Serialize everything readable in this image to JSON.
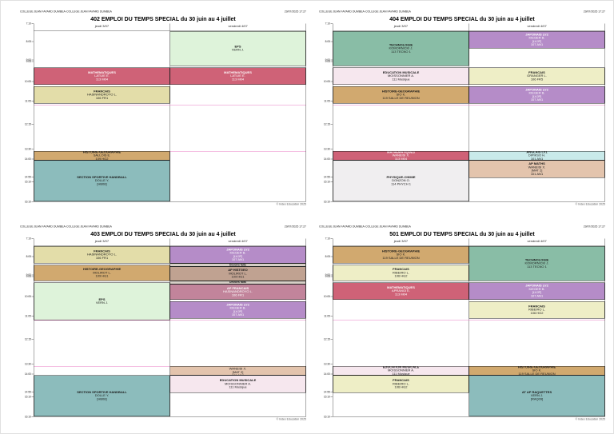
{
  "page_footer": "© Index Education 2025",
  "schedule_grid": {
    "day_start": "7:10",
    "day_end": "16:10",
    "time_ticks": [
      "7:10",
      "8:05",
      "9:00",
      "9:05",
      "10:05",
      "11:05",
      "12:15",
      "13:30",
      "14:00",
      "14:55",
      "15:10",
      "16:10"
    ],
    "break_lines": [
      "11:05",
      "13:30"
    ],
    "break_line_color": "#e87cc4",
    "grid_border_color": "#555555"
  },
  "timetables": [
    {
      "id": "402",
      "header_left": "COLLEGE JEAN FAYARD DUMBEA-COLLEGE JEAN FAYARD DUMBEA",
      "header_right": "29/07/2025 17:27",
      "title": "402 EMPLOI DU TEMPS SPECIAL du 30 juin au 4 juillet",
      "columns": [
        "jeudi 3/07",
        "vendredi 4/07"
      ],
      "events": [
        {
          "col": 0,
          "start": "9:05",
          "end": "10:00",
          "lines": [
            "MATHEMATIQUES",
            "LATUIE E.",
            "113 M04"
          ],
          "bg": "#cf6277",
          "fg": "#ffffff"
        },
        {
          "col": 0,
          "start": "10:05",
          "end": "11:00",
          "lines": [
            "FRANCAIS",
            "HASINANDROYO L.",
            "106 FR1"
          ],
          "bg": "#e3dda9"
        },
        {
          "col": 0,
          "start": "13:30",
          "end": "14:00",
          "lines": [
            "HISTOIRE-GEOGRAPHIE",
            "SALLOIS E.",
            "109 HG2"
          ],
          "bg": "#d1a96f"
        },
        {
          "col": 0,
          "start": "14:00",
          "end": "16:10",
          "lines": [
            "SECTION SPORTIVE HANDBALL",
            "DOLLE Y.",
            "[HB08]"
          ],
          "bg": "#8cbcbc"
        },
        {
          "col": 1,
          "start": "7:10",
          "end": "9:00",
          "lines": [
            "EPS",
            "VERN J."
          ],
          "bg": "#def3da"
        },
        {
          "col": 1,
          "start": "9:05",
          "end": "10:00",
          "lines": [
            "MATHEMATIQUES",
            "LATUIE E.",
            "113 M04"
          ],
          "bg": "#cf6277",
          "fg": "#ffffff"
        }
      ]
    },
    {
      "id": "404",
      "header_left": "COLLEGE JEAN FAYARD DUMBEA-COLLEGE JEAN FAYARD DUMBEA",
      "header_right": "29/07/2025 17:27",
      "title": "404 EMPLOI DU TEMPS SPECIAL du 30 juin au 4 juillet",
      "columns": [
        "jeudi 3/07",
        "vendredi 4/07"
      ],
      "events": [
        {
          "col": 0,
          "start": "7:10",
          "end": "9:00",
          "lines": [
            "TECHNOLOGIE",
            "KOMORNICKI J.",
            "113 TECNO 1"
          ],
          "bg": "#89bda6"
        },
        {
          "col": 0,
          "start": "9:05",
          "end": "10:00",
          "lines": [
            "EDUCATION MUSICALE",
            "MOISSONNIER A.",
            "111 Musique"
          ],
          "bg": "#f6e7ee"
        },
        {
          "col": 0,
          "start": "10:05",
          "end": "11:00",
          "lines": [
            "HISTOIRE-GEOGRAPHIE",
            "SIO K.",
            "119 SALLE DE REUNION"
          ],
          "bg": "#d1a96f"
        },
        {
          "col": 0,
          "start": "13:30",
          "end": "14:00",
          "lines": [
            "MATHEMATIQUES",
            "WANEISI X.",
            "113 M04"
          ],
          "bg": "#cf6277",
          "fg": "#ffffff"
        },
        {
          "col": 0,
          "start": "14:00",
          "end": "16:10",
          "lines": [
            "PHYSIQUE-CHIMIE",
            "DONZON O.",
            "114 PHYCH 1"
          ],
          "bg": "#f0eef0"
        },
        {
          "col": 1,
          "start": "7:10",
          "end": "8:05",
          "lines": [
            "JAPONAIS LV2",
            "KIEGER B.",
            "[LVJP]",
            "107 AN1"
          ],
          "bg": "#b58cc8",
          "fg": "#ffffff"
        },
        {
          "col": 1,
          "start": "9:05",
          "end": "10:00",
          "lines": [
            "FRANCAIS",
            "GRANGER L.",
            "106 FR5"
          ],
          "bg": "#eeeec6"
        },
        {
          "col": 1,
          "start": "10:05",
          "end": "11:00",
          "lines": [
            "JAPONAIS LV2",
            "KIEGER B.",
            "[LVJP]",
            "107 AN1"
          ],
          "bg": "#b58cc8",
          "fg": "#ffffff"
        },
        {
          "col": 1,
          "start": "13:30",
          "end": "14:00",
          "lines": [
            "ANGLAIS LV1",
            "DIPIKSO H.",
            "101 AN1"
          ],
          "bg": "#c9eaea"
        },
        {
          "col": 1,
          "start": "14:00",
          "end": "14:55",
          "lines": [
            "AP MATHS",
            "WANEISI X.",
            "[MAT 2]",
            "101 AN1"
          ],
          "bg": "#e3c4ad"
        }
      ]
    },
    {
      "id": "403",
      "header_left": "COLLEGE JEAN FAYARD DUMBEA-COLLEGE JEAN FAYARD DUMBEA",
      "header_right": "29/07/2025 17:27",
      "title": "403 EMPLOI DU TEMPS SPECIAL du 30 juin au 4 juillet",
      "columns": [
        "jeudi 3/07",
        "vendredi 4/07"
      ],
      "events": [
        {
          "col": 0,
          "start": "7:10",
          "end": "8:05",
          "lines": [
            "FRANCAIS",
            "HASINANDROYO L.",
            "106 FR1"
          ],
          "bg": "#e3dda9"
        },
        {
          "col": 0,
          "start": "8:10",
          "end": "9:00",
          "lines": [
            "HISTOIRE-GEOGRAPHIE",
            "MOLIROT L.",
            "109 HG1"
          ],
          "bg": "#d1a96f"
        },
        {
          "col": 0,
          "start": "9:05",
          "end": "11:05",
          "lines": [
            "EPS",
            "VERN J."
          ],
          "bg": "#def3da"
        },
        {
          "col": 0,
          "start": "14:00",
          "end": "16:10",
          "lines": [
            "SECTION SPORTIVE HANDBALL",
            "DOLLE Y.",
            "[HB08]"
          ],
          "bg": "#8cbcbc"
        },
        {
          "col": 1,
          "start": "7:10",
          "end": "8:05",
          "lines": [
            "JAPONAIS LV2",
            "KIEGER B.",
            "[LVJP]",
            "107 AN1"
          ],
          "bg": "#b58cc8",
          "fg": "#ffffff"
        },
        {
          "col": 1,
          "start": "8:05",
          "end": "8:15",
          "lines": [
            "Devoirs faits"
          ],
          "bg": "#d6cfc6",
          "strip": true
        },
        {
          "col": 1,
          "start": "8:15",
          "end": "9:00",
          "lines": [
            "AP HISTGEO",
            "MOLIROT L.",
            "109 HG1"
          ],
          "bg": "#c0a291"
        },
        {
          "col": 1,
          "start": "9:00",
          "end": "9:10",
          "lines": [
            "Devoirs faits"
          ],
          "bg": "#d6cfc6",
          "strip": true
        },
        {
          "col": 1,
          "start": "9:10",
          "end": "10:00",
          "lines": [
            "AP FRANCAIS",
            "HASINANDROYO L.",
            "106 FR1"
          ],
          "bg": "#c2849b",
          "fg": "#ffffff"
        },
        {
          "col": 1,
          "start": "10:05",
          "end": "11:00",
          "lines": [
            "JAPONAIS LV2",
            "KIEGER B.",
            "[LVJP]",
            "107 AN1"
          ],
          "bg": "#b58cc8",
          "fg": "#ffffff"
        },
        {
          "col": 1,
          "start": "13:30",
          "end": "14:00",
          "lines": [
            "AP MATHS",
            "WANEISI X.",
            "[MAT 2]",
            "101 AN1"
          ],
          "bg": "#e3c4ad"
        },
        {
          "col": 1,
          "start": "14:00",
          "end": "14:55",
          "lines": [
            "EDUCATION MUSICALE",
            "MOISSONNIER A.",
            "111 Musique"
          ],
          "bg": "#f6e7ee"
        }
      ]
    },
    {
      "id": "501",
      "header_left": "COLLEGE JEAN FAYARD DUMBEA-COLLEGE JEAN FAYARD DUMBEA",
      "header_right": "29/07/2025 17:27",
      "title": "501 EMPLOI DU TEMPS SPECIAL du 30 juin au 4 juillet",
      "columns": [
        "jeudi 3/07",
        "vendredi 4/07"
      ],
      "events": [
        {
          "col": 0,
          "start": "7:10",
          "end": "8:05",
          "lines": [
            "HISTOIRE-GEOGRAPHIE",
            "SIO K.",
            "119 SALLE DE REUNION"
          ],
          "bg": "#d1a96f"
        },
        {
          "col": 0,
          "start": "8:10",
          "end": "9:00",
          "lines": [
            "FRANCAIS",
            "RIBEIRO L.",
            "106 HG2"
          ],
          "bg": "#eeeec6"
        },
        {
          "col": 0,
          "start": "9:05",
          "end": "10:00",
          "lines": [
            "MATHEMATIQUES",
            "APRANGI E.",
            "113 M04"
          ],
          "bg": "#cf6277",
          "fg": "#ffffff"
        },
        {
          "col": 0,
          "start": "13:30",
          "end": "14:00",
          "lines": [
            "EDUCATION MUSICALE",
            "MOISSONNIER A.",
            "111 Musique"
          ],
          "bg": "#f6e7ee"
        },
        {
          "col": 0,
          "start": "14:00",
          "end": "14:55",
          "lines": [
            "FRANCAIS",
            "RIBEIRO L.",
            "106 HG2"
          ],
          "bg": "#eeeec6"
        },
        {
          "col": 1,
          "start": "7:10",
          "end": "9:00",
          "lines": [
            "TECHNOLOGIE",
            "KOMORNICKI J.",
            "113 TECNO 1"
          ],
          "bg": "#89bda6"
        },
        {
          "col": 1,
          "start": "9:05",
          "end": "10:00",
          "lines": [
            "JAPONAIS LV2",
            "KIEGER B.",
            "[LVJP]",
            "107 AN1"
          ],
          "bg": "#b58cc8",
          "fg": "#ffffff"
        },
        {
          "col": 1,
          "start": "10:05",
          "end": "11:00",
          "lines": [
            "FRANCAIS",
            "RIBEIRO L.",
            "106 HG2"
          ],
          "bg": "#eeeec6"
        },
        {
          "col": 1,
          "start": "13:30",
          "end": "14:00",
          "lines": [
            "HISTOIRE-GEOGRAPHIE",
            "SIO K.",
            "119 SALLE DE REUNION"
          ],
          "bg": "#d1a96f"
        },
        {
          "col": 1,
          "start": "14:00",
          "end": "16:10",
          "lines": [
            "AT AP RAQUETTES",
            "VERN J.",
            "[RAQ09]"
          ],
          "bg": "#8cbcbc"
        }
      ]
    }
  ]
}
